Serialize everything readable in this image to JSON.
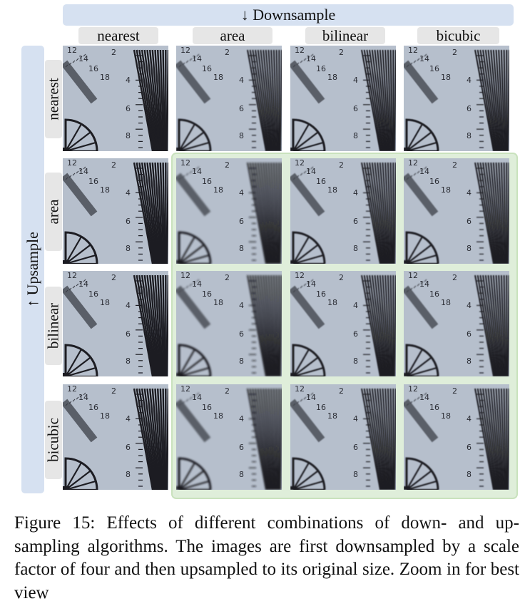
{
  "figure": {
    "downsample_label": "↓ Downsample",
    "upsample_label": "↑ Upsample",
    "columns": [
      "nearest",
      "area",
      "bilinear",
      "bicubic"
    ],
    "rows": [
      "nearest",
      "area",
      "bilinear",
      "bicubic"
    ],
    "chart_tick_numbers": {
      "left_diag": [
        "12",
        "14",
        "16",
        "18"
      ],
      "top": "2",
      "right_scale": [
        "4",
        "6",
        "8"
      ]
    },
    "colors": {
      "banner": "#d6e1f1",
      "label_bg": "#e6e6e6",
      "highlight_bg": "#dfeeda",
      "highlight_border": "#c9e2bd",
      "chart_bg": "#b6bfcc",
      "chart_ink": "#1d1d22"
    }
  },
  "caption": {
    "text": "Figure 15: Effects of different combinations of down- and up-sampling algorithms. The images are first downsampled by a scale factor of four and then upsampled to its original size. Zoom in for best view"
  }
}
